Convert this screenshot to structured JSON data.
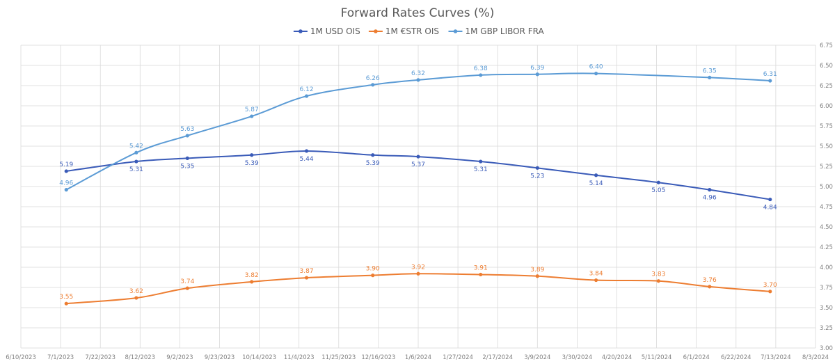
{
  "chart_data": {
    "type": "line",
    "title": "Forward Rates Curves (%)",
    "xlabel": "",
    "ylabel": "",
    "x_axis": {
      "type": "date",
      "range": [
        "2023-06-10",
        "2024-08-03"
      ],
      "ticks": [
        "2023-06-10",
        "2023-07-01",
        "2023-07-22",
        "2023-08-12",
        "2023-09-02",
        "2023-09-23",
        "2023-10-14",
        "2023-11-04",
        "2023-11-25",
        "2023-12-16",
        "2024-01-06",
        "2024-01-27",
        "2024-02-17",
        "2024-03-09",
        "2024-03-30",
        "2024-04-20",
        "2024-05-11",
        "2024-06-01",
        "2024-06-22",
        "2024-07-13",
        "2024-08-03"
      ],
      "tick_labels": [
        "6/10/2023",
        "7/1/2023",
        "7/22/2023",
        "8/12/2023",
        "9/2/2023",
        "9/23/2023",
        "10/14/2023",
        "11/4/2023",
        "11/25/2023",
        "12/16/2023",
        "1/6/2024",
        "1/27/2024",
        "2/17/2024",
        "3/9/2024",
        "3/30/2024",
        "4/20/2024",
        "5/11/2024",
        "6/1/2024",
        "6/22/2024",
        "7/13/2024",
        "8/3/2024"
      ]
    },
    "y_axis": {
      "position": "right",
      "ylim": [
        3.0,
        6.75
      ],
      "ticks": [
        3.0,
        3.25,
        3.5,
        3.75,
        4.0,
        4.25,
        4.5,
        4.75,
        5.0,
        5.25,
        5.5,
        5.75,
        6.0,
        6.25,
        6.5,
        6.75
      ],
      "tick_labels": [
        "3.00",
        "3.25",
        "3.50",
        "3.75",
        "4.00",
        "4.25",
        "4.50",
        "4.75",
        "5.00",
        "5.25",
        "5.50",
        "5.75",
        "6.00",
        "6.25",
        "6.50",
        "6.75"
      ]
    },
    "grid": true,
    "legend": "top-center",
    "series": [
      {
        "name": "1M USD OIS",
        "color": "#3a5bb8",
        "label_position": "below",
        "first_label_position": "above",
        "x": [
          "2023-07-04",
          "2023-08-10",
          "2023-09-06",
          "2023-10-10",
          "2023-11-08",
          "2023-12-13",
          "2024-01-06",
          "2024-02-08",
          "2024-03-09",
          "2024-04-09",
          "2024-05-12",
          "2024-06-08",
          "2024-07-10"
        ],
        "values": [
          5.19,
          5.31,
          5.35,
          5.39,
          5.44,
          5.39,
          5.37,
          5.31,
          5.23,
          5.14,
          5.05,
          4.96,
          4.84
        ],
        "labels": [
          "5.19",
          "5.31",
          "5.35",
          "5.39",
          "5.44",
          "5.39",
          "5.37",
          "5.31",
          "5.23",
          "5.14",
          "5.05",
          "4.96",
          "4.84"
        ]
      },
      {
        "name": "1M €STR OIS",
        "color": "#ed7d31",
        "label_position": "above",
        "x": [
          "2023-07-04",
          "2023-08-10",
          "2023-09-06",
          "2023-10-10",
          "2023-11-08",
          "2023-12-13",
          "2024-01-06",
          "2024-02-08",
          "2024-03-09",
          "2024-04-09",
          "2024-05-12",
          "2024-06-08",
          "2024-07-10"
        ],
        "values": [
          3.55,
          3.62,
          3.74,
          3.82,
          3.87,
          3.9,
          3.92,
          3.91,
          3.89,
          3.84,
          3.83,
          3.76,
          3.7
        ],
        "labels": [
          "3.55",
          "3.62",
          "3.74",
          "3.82",
          "3.87",
          "3.90",
          "3.92",
          "3.91",
          "3.89",
          "3.84",
          "3.83",
          "3.76",
          "3.70"
        ]
      },
      {
        "name": "1M GBP LIBOR FRA",
        "color": "#5b9bd5",
        "label_position": "above",
        "x": [
          "2023-07-04",
          "2023-08-10",
          "2023-09-06",
          "2023-10-10",
          "2023-11-08",
          "2023-12-13",
          "2024-01-06",
          "2024-02-08",
          "2024-03-09",
          "2024-04-09",
          "2024-06-08",
          "2024-07-10"
        ],
        "values": [
          4.96,
          5.42,
          5.63,
          5.87,
          6.12,
          6.26,
          6.32,
          6.38,
          6.39,
          6.4,
          6.35,
          6.31
        ],
        "labels": [
          "4.96",
          "5.42",
          "5.63",
          "5.87",
          "6.12",
          "6.26",
          "6.32",
          "6.38",
          "6.39",
          "6.40",
          "6.35",
          "6.31"
        ]
      }
    ]
  }
}
